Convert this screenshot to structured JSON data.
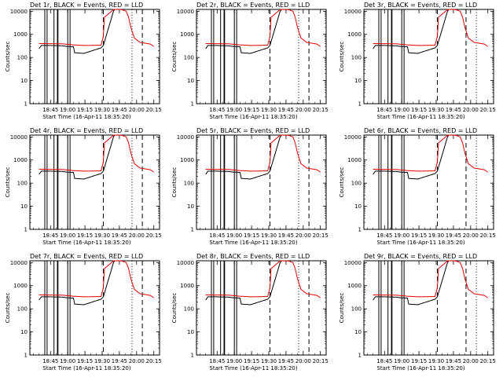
{
  "colors": {
    "events": "#000000",
    "lld": "#e00000",
    "background": "#ffffff"
  },
  "shared": {
    "type": "line",
    "ylabel": "Counts/sec",
    "xlabel": "Start Time (16-Apr-11 18:35:20)",
    "y_scale": "log",
    "ylim": [
      1,
      12000
    ],
    "y_ticks": [
      1,
      10,
      100,
      1000,
      10000
    ],
    "y_tick_labels": [
      "1",
      "10",
      "100",
      "1000",
      "10000"
    ],
    "x_ticks": [
      "18:45",
      "19:00",
      "19:15",
      "19:30",
      "19:45",
      "20:00",
      "20:15"
    ],
    "xlim_minutes": [
      -8,
      105
    ],
    "x_tick_minutes": [
      10,
      25,
      40,
      55,
      70,
      85,
      100
    ],
    "series": [
      {
        "name": "Events",
        "color": "#000000"
      },
      {
        "name": "LLD",
        "color": "#e00000"
      }
    ],
    "events_profile": {
      "x": [
        0,
        2,
        10,
        20,
        24,
        30,
        31,
        39,
        54,
        56,
        65,
        66
      ],
      "y": [
        240,
        330,
        330,
        320,
        300,
        290,
        160,
        150,
        260,
        330,
        10500,
        11500
      ]
    },
    "lld_profile": {
      "x": [
        0,
        20,
        30,
        40,
        54,
        56,
        57,
        65,
        72,
        76,
        78,
        80,
        83,
        88,
        97,
        100
      ],
      "y": [
        400,
        390,
        350,
        330,
        340,
        800,
        5500,
        12000,
        11800,
        10000,
        5500,
        2000,
        700,
        450,
        380,
        300
      ]
    }
  },
  "chart_data": [
    {
      "type": "line",
      "title": "Det 1r, BLACK = Events, RED = LLD",
      "gap_lines": [
        5,
        7,
        13,
        16,
        16.5,
        25,
        27
      ],
      "dashed_lines": [
        56,
        90
      ],
      "dotted_lines": [
        81
      ]
    },
    {
      "type": "line",
      "title": "Det 2r, BLACK = Events, RED = LLD",
      "gap_lines": [
        5,
        7,
        13,
        16,
        16.5,
        25,
        27
      ],
      "dashed_lines": [
        56,
        90
      ],
      "dotted_lines": [
        81
      ]
    },
    {
      "type": "line",
      "title": "Det 3r, BLACK = Events, RED = LLD",
      "gap_lines": [
        5,
        7,
        13,
        16,
        16.5,
        25,
        27
      ],
      "dashed_lines": [
        56,
        81
      ],
      "dotted_lines": [
        90
      ]
    },
    {
      "type": "line",
      "title": "Det 4r, BLACK = Events, RED = LLD",
      "gap_lines": [
        5,
        7,
        13,
        16,
        16.5,
        25,
        27
      ],
      "dashed_lines": [
        56,
        90
      ],
      "dotted_lines": [
        81
      ]
    },
    {
      "type": "line",
      "title": "Det 5r, BLACK = Events, RED = LLD",
      "gap_lines": [
        5,
        7,
        13,
        16,
        16.5,
        25,
        27
      ],
      "dashed_lines": [
        56,
        90
      ],
      "dotted_lines": [
        81
      ]
    },
    {
      "type": "line",
      "title": "Det 6r, BLACK = Events, RED = LLD",
      "gap_lines": [
        5,
        7,
        13,
        16,
        16.5,
        25,
        27
      ],
      "dashed_lines": [
        56,
        81
      ],
      "dotted_lines": [
        90
      ]
    },
    {
      "type": "line",
      "title": "Det 7r, BLACK = Events, RED = LLD",
      "gap_lines": [
        5,
        7,
        13,
        16,
        16.5,
        25,
        27
      ],
      "dashed_lines": [
        56,
        90
      ],
      "dotted_lines": [
        81
      ]
    },
    {
      "type": "line",
      "title": "Det 8r, BLACK = Events, RED = LLD",
      "gap_lines": [
        5,
        7,
        13,
        16,
        16.5,
        25,
        27
      ],
      "dashed_lines": [
        56,
        90
      ],
      "dotted_lines": [
        81
      ]
    },
    {
      "type": "line",
      "title": "Det 9r, BLACK = Events, RED = LLD",
      "gap_lines": [
        5,
        7,
        13,
        16,
        16.5,
        25,
        27
      ],
      "dashed_lines": [
        56,
        81
      ],
      "dotted_lines": [
        90
      ]
    }
  ]
}
